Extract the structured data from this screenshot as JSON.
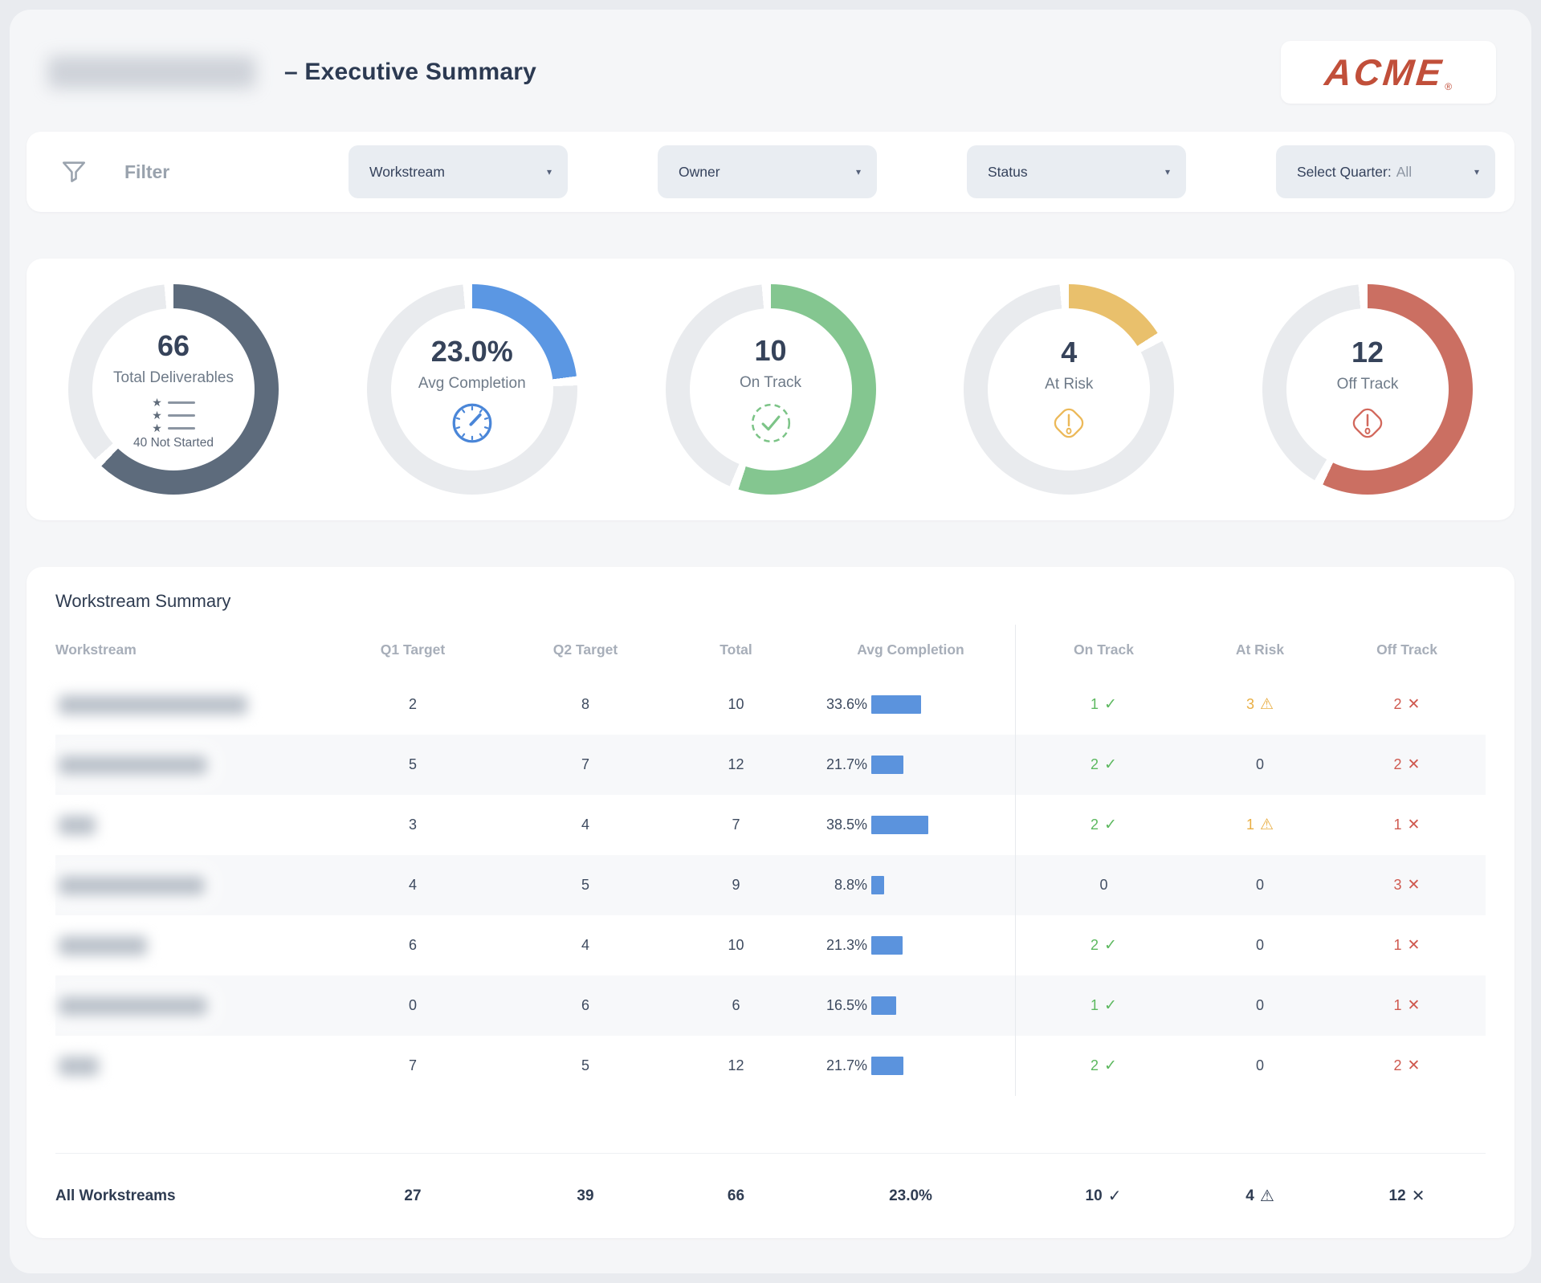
{
  "header": {
    "title_suffix": "–  Executive Summary",
    "logo_text": "ACME",
    "logo_reg": "®"
  },
  "filters": {
    "label": "Filter",
    "chips": [
      {
        "label": "Workstream"
      },
      {
        "label": "Owner"
      },
      {
        "label": "Status"
      },
      {
        "label": "Select Quarter:",
        "value": "All"
      }
    ]
  },
  "icons": {
    "check": "✓",
    "warning": "⚠",
    "cross": "✕",
    "caret": "▾",
    "star": "★"
  },
  "colors": {
    "on_track": "#5cb85f",
    "at_risk": "#e9ae43",
    "off_track": "#cf5a50",
    "bar_blue": "#5b93dd",
    "track_gray": "#e9ebee",
    "logo_red": "#c14f3a"
  },
  "kpis": [
    {
      "label": "Total Deliverables",
      "value": "66",
      "sub": "40 Not Started",
      "icon": "checklist-icon",
      "icon_color": "#5f6b7a",
      "color": "#5d6b7c",
      "arc_pct": 62
    },
    {
      "label": "Avg Completion",
      "value": "23.0%",
      "sub": "",
      "icon": "gauge-icon",
      "icon_color": "#4a86d8",
      "color": "#5b97e3",
      "arc_pct": 23
    },
    {
      "label": "On Track",
      "value": "10",
      "sub": "",
      "icon": "check-circle-icon",
      "icon_color": "#7cc487",
      "color": "#84c690",
      "arc_pct": 55
    },
    {
      "label": "At Risk",
      "value": "4",
      "sub": "",
      "icon": "alert-diamond-icon",
      "icon_color": "#ecb959",
      "color": "#e9c06c",
      "arc_pct": 16
    },
    {
      "label": "Off Track",
      "value": "12",
      "sub": "",
      "icon": "alert-diamond-icon",
      "icon_color": "#d2685c",
      "color": "#cb6f62",
      "arc_pct": 57
    }
  ],
  "table": {
    "title": "Workstream Summary",
    "columns": [
      "Workstream",
      "Q1 Target",
      "Q2 Target",
      "Total",
      "Avg Completion",
      "On Track",
      "At Risk",
      "Off Track"
    ],
    "rows": [
      {
        "redacted_width": 235,
        "q1": 2,
        "q2": 8,
        "total": 10,
        "avg_completion": 33.6,
        "on_track": 1,
        "at_risk": 3,
        "off_track": 2
      },
      {
        "redacted_width": 185,
        "q1": 5,
        "q2": 7,
        "total": 12,
        "avg_completion": 21.7,
        "on_track": 2,
        "at_risk": 0,
        "off_track": 2
      },
      {
        "redacted_width": 46,
        "q1": 3,
        "q2": 4,
        "total": 7,
        "avg_completion": 38.5,
        "on_track": 2,
        "at_risk": 1,
        "off_track": 1
      },
      {
        "redacted_width": 182,
        "q1": 4,
        "q2": 5,
        "total": 9,
        "avg_completion": 8.8,
        "on_track": 0,
        "at_risk": 0,
        "off_track": 3
      },
      {
        "redacted_width": 110,
        "q1": 6,
        "q2": 4,
        "total": 10,
        "avg_completion": 21.3,
        "on_track": 2,
        "at_risk": 0,
        "off_track": 1
      },
      {
        "redacted_width": 185,
        "q1": 0,
        "q2": 6,
        "total": 6,
        "avg_completion": 16.5,
        "on_track": 1,
        "at_risk": 0,
        "off_track": 1
      },
      {
        "redacted_width": 50,
        "q1": 7,
        "q2": 5,
        "total": 12,
        "avg_completion": 21.7,
        "on_track": 2,
        "at_risk": 0,
        "off_track": 2
      }
    ],
    "footer": {
      "label": "All Workstreams",
      "q1": 27,
      "q2": 39,
      "total": 66,
      "avg_completion": "23.0%",
      "on_track": 10,
      "at_risk": 4,
      "off_track": 12
    }
  },
  "chart_data": [
    {
      "type": "pie",
      "subtype": "donut",
      "title": "Total Deliverables",
      "value": 66,
      "annotation": "40 Not Started",
      "arc_pct": 62,
      "color": "#5d6b7c"
    },
    {
      "type": "pie",
      "subtype": "donut",
      "title": "Avg Completion",
      "value": "23.0%",
      "arc_pct": 23,
      "color": "#5b97e3"
    },
    {
      "type": "pie",
      "subtype": "donut",
      "title": "On Track",
      "value": 10,
      "arc_pct": 55,
      "color": "#84c690"
    },
    {
      "type": "pie",
      "subtype": "donut",
      "title": "At Risk",
      "value": 4,
      "arc_pct": 16,
      "color": "#e9c06c"
    },
    {
      "type": "pie",
      "subtype": "donut",
      "title": "Off Track",
      "value": 12,
      "arc_pct": 57,
      "color": "#cb6f62"
    },
    {
      "type": "table",
      "title": "Workstream Summary",
      "columns": [
        "Workstream",
        "Q1 Target",
        "Q2 Target",
        "Total",
        "Avg Completion %",
        "On Track",
        "At Risk",
        "Off Track"
      ],
      "rows": [
        [
          "(redacted)",
          2,
          8,
          10,
          33.6,
          1,
          3,
          2
        ],
        [
          "(redacted)",
          5,
          7,
          12,
          21.7,
          2,
          0,
          2
        ],
        [
          "(redacted)",
          3,
          4,
          7,
          38.5,
          2,
          1,
          1
        ],
        [
          "(redacted)",
          4,
          5,
          9,
          8.8,
          0,
          0,
          3
        ],
        [
          "(redacted)",
          6,
          4,
          10,
          21.3,
          2,
          0,
          1
        ],
        [
          "(redacted)",
          0,
          6,
          6,
          16.5,
          1,
          0,
          1
        ],
        [
          "(redacted)",
          7,
          5,
          12,
          21.7,
          2,
          0,
          2
        ],
        [
          "All Workstreams",
          27,
          39,
          66,
          23.0,
          10,
          4,
          12
        ]
      ]
    }
  ]
}
